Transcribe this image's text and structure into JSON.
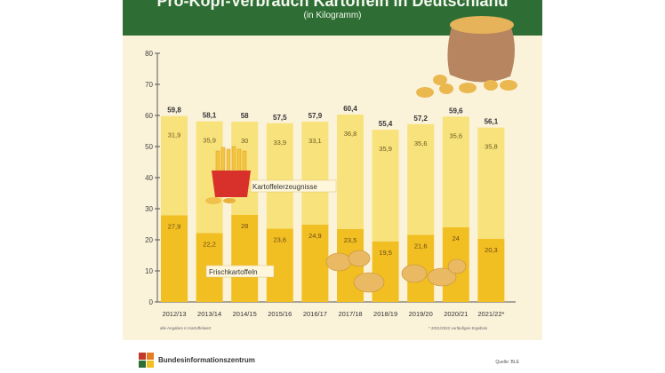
{
  "header": {
    "title": "Pro-Kopf-Verbrauch Kartoffeln in Deutschland",
    "subtitle": "(in Kilogramm)"
  },
  "notes": {
    "left": "alle Angaben in Kartoffelwert",
    "right": "* 2021/2022 vorläufiges Ergebnis"
  },
  "footer": {
    "brand": "Bundesinformationszentrum",
    "source": "Quelle: BLE"
  },
  "colors": {
    "banner": "#2e6e35",
    "panel": "#fbf2da",
    "fresh": "#f2bf23",
    "products": "#f8e27b",
    "axis": "#555555"
  },
  "chart_data": {
    "type": "bar",
    "stacked": true,
    "categories": [
      "2012/13",
      "2013/14",
      "2014/15",
      "2015/16",
      "2016/17",
      "2017/18",
      "2018/19",
      "2019/20",
      "2020/21",
      "2021/22*"
    ],
    "series": [
      {
        "name": "Frischkartoffeln",
        "values": [
          27.9,
          22.2,
          28.0,
          23.6,
          24.9,
          23.5,
          19.5,
          21.6,
          24.0,
          20.3
        ]
      },
      {
        "name": "Kartoffelerzeugnisse",
        "values": [
          31.9,
          35.9,
          30.0,
          33.9,
          33.1,
          36.8,
          35.9,
          35.6,
          35.6,
          35.8
        ]
      }
    ],
    "totals": [
      59.8,
      58.1,
      58.0,
      57.5,
      57.9,
      60.4,
      55.4,
      57.2,
      59.6,
      56.1
    ],
    "yticks": [
      0,
      10,
      20,
      30,
      40,
      50,
      60,
      70,
      80
    ],
    "ylim": [
      0,
      80
    ],
    "grid": false,
    "legend": "inline labels on bars"
  }
}
